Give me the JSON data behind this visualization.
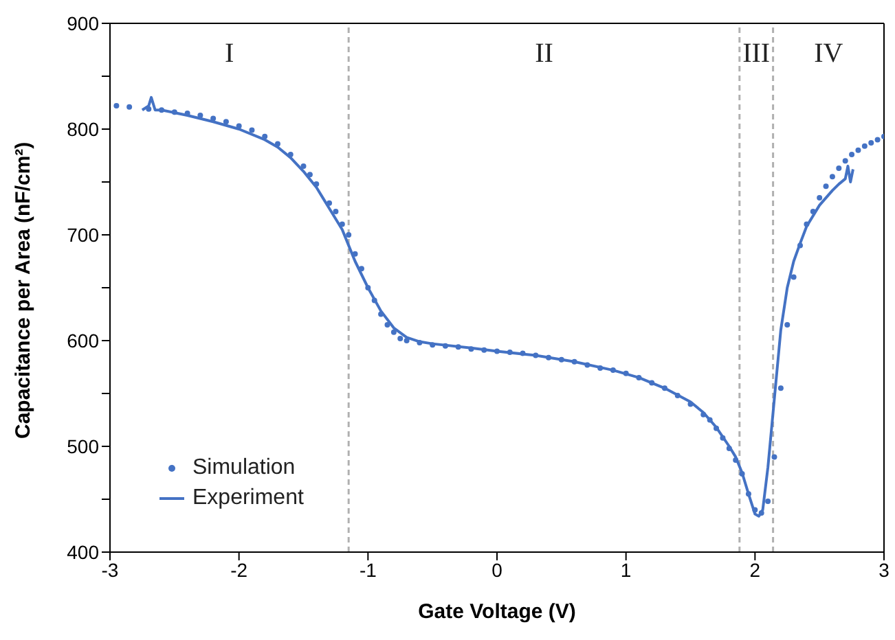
{
  "chart_data": {
    "type": "line",
    "xlabel": "Gate Voltage (V)",
    "ylabel": "Capacitance per Area (nF/cm²)",
    "xlim": [
      -3,
      3
    ],
    "xticks": [
      -3,
      -2,
      -1,
      0,
      1,
      2,
      3
    ],
    "ylim": [
      400,
      900
    ],
    "yticks": [
      400,
      {
        "value": 450,
        "label": null
      },
      500,
      {
        "value": 550,
        "label": null
      },
      600,
      {
        "value": 650,
        "label": null
      },
      700,
      {
        "value": 750,
        "label": null
      },
      800,
      {
        "value": 850,
        "label": null
      },
      900
    ],
    "grid": false,
    "legend": "bottom left",
    "series": [
      {
        "name": "Simulation",
        "type": "scatter",
        "marker": "circle",
        "color": "#4472c4",
        "x": [
          -2.95,
          -2.85,
          -2.7,
          -2.6,
          -2.5,
          -2.4,
          -2.3,
          -2.2,
          -2.1,
          -2.0,
          -1.9,
          -1.8,
          -1.7,
          -1.6,
          -1.5,
          -1.45,
          -1.4,
          -1.3,
          -1.25,
          -1.2,
          -1.15,
          -1.1,
          -1.05,
          -1.0,
          -0.95,
          -0.9,
          -0.85,
          -0.8,
          -0.75,
          -0.7,
          -0.6,
          -0.5,
          -0.4,
          -0.3,
          -0.2,
          -0.1,
          0,
          0.1,
          0.2,
          0.3,
          0.4,
          0.5,
          0.6,
          0.7,
          0.8,
          0.9,
          1.0,
          1.1,
          1.2,
          1.3,
          1.4,
          1.5,
          1.6,
          1.65,
          1.7,
          1.75,
          1.8,
          1.85,
          1.9,
          1.95,
          2.0,
          2.05,
          2.1,
          2.15,
          2.2,
          2.25,
          2.3,
          2.35,
          2.4,
          2.45,
          2.5,
          2.55,
          2.6,
          2.65,
          2.7,
          2.75,
          2.8,
          2.85,
          2.9,
          2.95,
          3.0
        ],
        "values": [
          822,
          821,
          819,
          818,
          816,
          815,
          813,
          810,
          807,
          803,
          799,
          793,
          786,
          776,
          765,
          757,
          748,
          730,
          722,
          710,
          700,
          682,
          668,
          650,
          638,
          625,
          615,
          608,
          602,
          600,
          598,
          596,
          595,
          594,
          592,
          591,
          590,
          589,
          588,
          586,
          584,
          582,
          580,
          577,
          574,
          572,
          569,
          565,
          560,
          555,
          548,
          540,
          530,
          525,
          517,
          508,
          498,
          487,
          474,
          455,
          440,
          437,
          448,
          490,
          555,
          615,
          660,
          690,
          710,
          722,
          735,
          746,
          755,
          763,
          770,
          776,
          780,
          784,
          787,
          790,
          793
        ]
      },
      {
        "name": "Experiment",
        "line_style": "solid",
        "marker": "none",
        "color": "#4472c4",
        "x": [
          -2.75,
          -2.7,
          -2.68,
          -2.65,
          -2.6,
          -2.4,
          -2.2,
          -2.0,
          -1.8,
          -1.7,
          -1.6,
          -1.5,
          -1.4,
          -1.35,
          -1.3,
          -1.2,
          -1.1,
          -1.0,
          -0.9,
          -0.8,
          -0.7,
          -0.6,
          -0.5,
          -0.2,
          0,
          0.3,
          0.6,
          0.9,
          1.1,
          1.3,
          1.5,
          1.6,
          1.7,
          1.8,
          1.85,
          1.9,
          1.95,
          2.0,
          2.03,
          2.06,
          2.1,
          2.15,
          2.2,
          2.25,
          2.3,
          2.35,
          2.4,
          2.5,
          2.6,
          2.65,
          2.7,
          2.72,
          2.74,
          2.76
        ],
        "values": [
          818,
          822,
          830,
          818,
          818,
          813,
          807,
          800,
          790,
          783,
          773,
          760,
          745,
          735,
          725,
          705,
          675,
          650,
          628,
          612,
          603,
          599,
          597,
          593,
          590,
          586,
          580,
          572,
          565,
          555,
          542,
          532,
          518,
          500,
          490,
          475,
          455,
          436,
          434,
          440,
          480,
          545,
          610,
          650,
          675,
          692,
          708,
          728,
          742,
          748,
          753,
          765,
          750,
          762
        ]
      }
    ],
    "ref_lines": [
      {
        "axis": "x",
        "value": -1.15,
        "color": "#b0b0b0",
        "line_style": "dashed"
      },
      {
        "axis": "x",
        "value": 1.88,
        "color": "#b0b0b0",
        "line_style": "dashed"
      },
      {
        "axis": "x",
        "value": 2.14,
        "color": "#b0b0b0",
        "line_style": "dashed"
      }
    ],
    "annotations": [
      "I",
      "II",
      "III",
      "IV"
    ]
  }
}
